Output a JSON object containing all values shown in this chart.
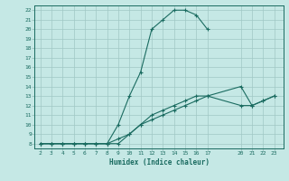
{
  "xlabel": "Humidex (Indice chaleur)",
  "background_color": "#c5e8e5",
  "grid_color": "#a0c8c4",
  "line_color": "#1a6b60",
  "xlim": [
    1.5,
    23.8
  ],
  "ylim": [
    7.5,
    22.5
  ],
  "xticks": [
    2,
    3,
    4,
    5,
    6,
    7,
    8,
    9,
    10,
    11,
    12,
    13,
    14,
    15,
    16,
    17,
    20,
    21,
    22,
    23
  ],
  "yticks": [
    8,
    9,
    10,
    11,
    12,
    13,
    14,
    15,
    16,
    17,
    18,
    19,
    20,
    21,
    22
  ],
  "series": [
    {
      "x": [
        2,
        3,
        4,
        5,
        6,
        7,
        8,
        9,
        10,
        11,
        12,
        13,
        14,
        15,
        16,
        17
      ],
      "y": [
        8,
        8,
        8,
        8,
        8,
        8,
        8,
        10,
        13,
        15.5,
        20,
        21,
        22,
        22,
        21.5,
        20
      ]
    },
    {
      "x": [
        2,
        3,
        4,
        5,
        6,
        7,
        8,
        9,
        10,
        11,
        12,
        13,
        14,
        15,
        16,
        17,
        20,
        21,
        22,
        23
      ],
      "y": [
        8,
        8,
        8,
        8,
        8,
        8,
        8,
        8.5,
        9,
        10,
        11,
        11.5,
        12,
        12.5,
        13,
        13,
        14,
        12,
        12.5,
        13
      ]
    },
    {
      "x": [
        2,
        3,
        4,
        5,
        6,
        7,
        8,
        9,
        10,
        11,
        12,
        13,
        14,
        15,
        16,
        17,
        20,
        21,
        22,
        23
      ],
      "y": [
        8,
        8,
        8,
        8,
        8,
        8,
        8,
        8,
        9,
        10,
        10.5,
        11,
        11.5,
        12,
        12.5,
        13,
        12,
        12,
        12.5,
        13
      ]
    }
  ]
}
